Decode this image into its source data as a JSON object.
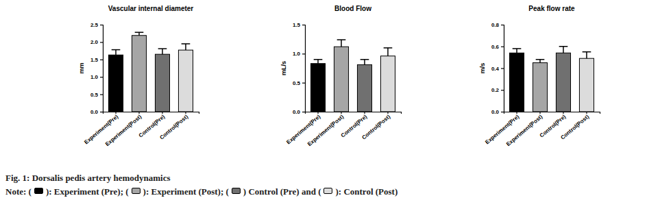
{
  "chart_data": [
    {
      "type": "bar",
      "title": "Vascular internal diameter",
      "y_label": "mm",
      "categories": [
        "Experiment(Pre)",
        "Experiment(Post)",
        "Control(Pre)",
        "Control(Post)"
      ],
      "values": [
        1.63,
        2.19,
        1.65,
        1.77
      ],
      "errors": [
        0.15,
        0.09,
        0.16,
        0.18
      ],
      "colors": [
        "#000000",
        "#a6a6a6",
        "#707070",
        "#dcdcdc"
      ],
      "ylim": [
        0,
        2.5
      ],
      "yticks": [
        {
          "value": 0,
          "label": "0.0"
        },
        0.5,
        {
          "value": 1,
          "label": "1.0"
        },
        1.5,
        {
          "value": 2,
          "label": "2.0"
        },
        2.5
      ]
    },
    {
      "type": "bar",
      "title": "Blood Flow",
      "y_label": "mL/s",
      "categories": [
        "Experiment(Pre)",
        "Experiment(Post)",
        "Control(Pre)",
        "Control(Post)"
      ],
      "values": [
        0.83,
        1.12,
        0.81,
        0.96
      ],
      "errors": [
        0.07,
        0.12,
        0.09,
        0.14
      ],
      "colors": [
        "#000000",
        "#a6a6a6",
        "#707070",
        "#dcdcdc"
      ],
      "ylim": [
        0,
        1.5
      ],
      "yticks": [
        {
          "value": 0,
          "label": "0.0"
        },
        0.5,
        {
          "value": 1,
          "label": "1.0"
        },
        1.5
      ]
    },
    {
      "type": "bar",
      "title": "Peak flow rate",
      "y_label": "m/s",
      "categories": [
        "Experiment(Pre)",
        "Experiment(Post)",
        "Control(Pre)",
        "Control(Post)"
      ],
      "values": [
        0.54,
        0.45,
        0.54,
        0.49
      ],
      "errors": [
        0.04,
        0.03,
        0.06,
        0.06
      ],
      "colors": [
        "#000000",
        "#a6a6a6",
        "#707070",
        "#dcdcdc"
      ],
      "ylim": [
        0,
        0.8
      ],
      "yticks": [
        {
          "value": 0,
          "label": "0.0"
        },
        0.2,
        0.4,
        0.6,
        0.8
      ]
    }
  ],
  "caption": {
    "title": "Fig. 1: Dorsalis pedis artery hemodynamics",
    "note": [
      "Note: (",
      "): Experiment (Pre); (",
      "): Experiment (Post); (",
      ") Control (Pre) and (",
      "): Control (Post)"
    ]
  }
}
